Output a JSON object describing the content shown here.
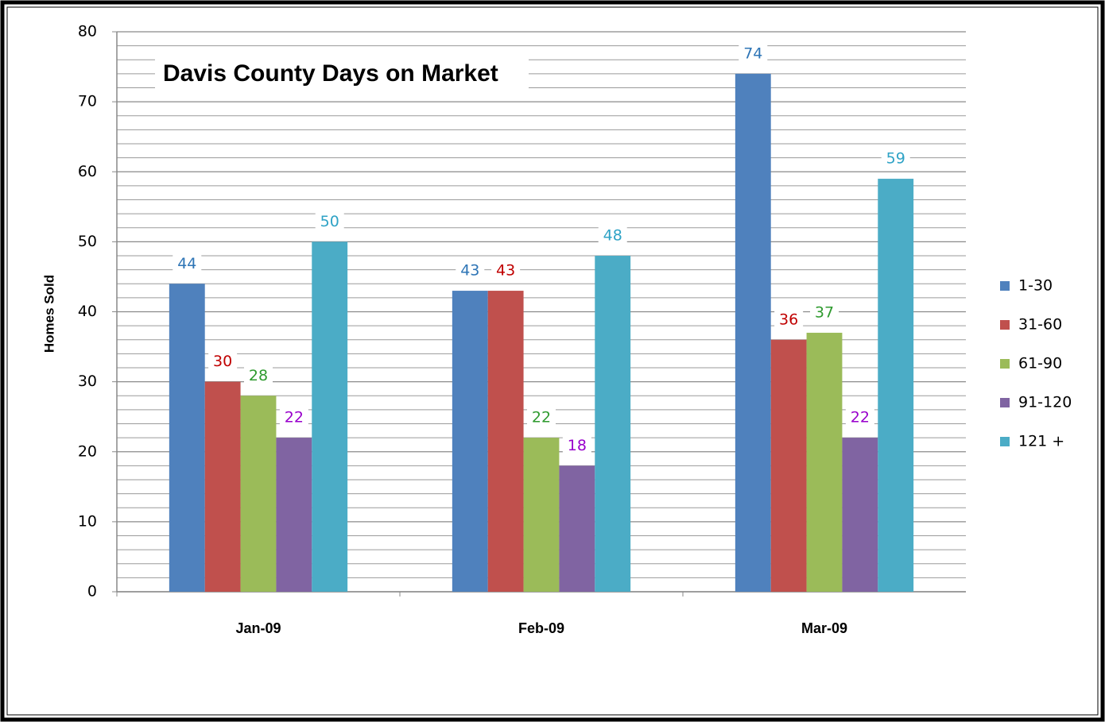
{
  "chart_data": {
    "type": "bar",
    "title": "Davis County Days on Market",
    "y_label": "Homes Sold",
    "categories": [
      "Jan-09",
      "Feb-09",
      "Mar-09"
    ],
    "series": [
      {
        "name": "1-30",
        "color": "#4f81bd",
        "label_color": "#2e75b6",
        "values": [
          44,
          43,
          74
        ]
      },
      {
        "name": "31-60",
        "color": "#c0504d",
        "label_color": "#c00000",
        "values": [
          30,
          43,
          36
        ]
      },
      {
        "name": "61-90",
        "color": "#9bbb59",
        "label_color": "#2e9a2e",
        "values": [
          28,
          22,
          37
        ]
      },
      {
        "name": "91-120",
        "color": "#8064a2",
        "label_color": "#9900cc",
        "values": [
          22,
          18,
          22
        ]
      },
      {
        "name": "121 +",
        "color": "#4bacc6",
        "label_color": "#2fa3c6",
        "values": [
          50,
          48,
          59
        ]
      }
    ],
    "ylim": [
      0,
      80
    ],
    "yticks": [
      0,
      10,
      20,
      30,
      40,
      50,
      60,
      70,
      80
    ],
    "grid": true,
    "legend": "right"
  }
}
